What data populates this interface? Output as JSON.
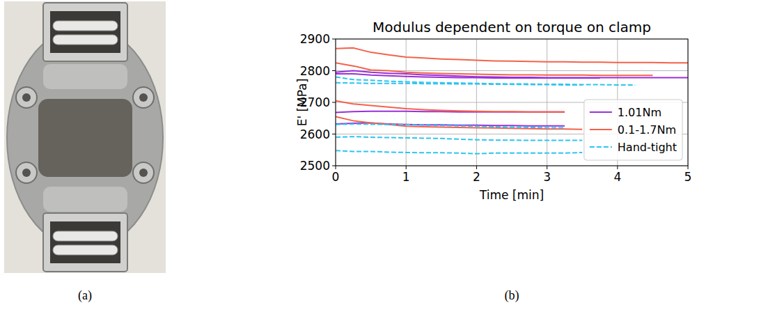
{
  "chart_data": {
    "type": "line",
    "title": "Modulus dependent on torque on clamp",
    "x_label": "Time [min]",
    "y_label": "E' [MPa]",
    "x": [
      0,
      0.25,
      0.5,
      0.75,
      1,
      1.25,
      1.5,
      1.75,
      2,
      2.25,
      2.5,
      2.75,
      3,
      3.25,
      3.5,
      3.75,
      4,
      4.25,
      4.5,
      4.75,
      5
    ],
    "series": [
      {
        "name": "1.01Nm",
        "color": "#9930d8",
        "line_style": "solid",
        "values": [
          2795,
          2800,
          2795,
          2792,
          2790,
          2787,
          2785,
          2783,
          2781,
          2780,
          2779,
          2779,
          2778,
          2778,
          2778,
          2778,
          2778,
          2778,
          2778,
          2778,
          2778
        ]
      },
      {
        "name": "1.01Nm",
        "color": "#9930d8",
        "line_style": "solid",
        "values": [
          2790,
          2790,
          2786,
          2784,
          2782,
          2780,
          2779,
          2778,
          2778,
          2777,
          2777,
          2777,
          2777,
          2777,
          2777,
          2777,
          null,
          null,
          null,
          null,
          null
        ]
      },
      {
        "name": "1.01Nm",
        "color": "#9930d8",
        "line_style": "solid",
        "values": [
          2668,
          2671,
          2672,
          2672,
          2672,
          2671,
          2671,
          2670,
          2670,
          2670,
          2670,
          2670,
          2670,
          2670,
          null,
          null,
          null,
          null,
          null,
          null,
          null
        ]
      },
      {
        "name": "1.01Nm",
        "color": "#9930d8",
        "line_style": "solid",
        "values": [
          2632,
          2634,
          2635,
          2632,
          2630,
          2629,
          2629,
          2628,
          2628,
          2627,
          2627,
          2626,
          2626,
          2626,
          null,
          null,
          null,
          null,
          null,
          null,
          null
        ]
      },
      {
        "name": "0.1-1.7Nm",
        "color": "#f4624a",
        "line_style": "solid",
        "values": [
          2870,
          2872,
          2858,
          2850,
          2843,
          2840,
          2837,
          2835,
          2833,
          2831,
          2830,
          2829,
          2828,
          2828,
          2827,
          2827,
          2826,
          2826,
          2826,
          2825,
          2825
        ]
      },
      {
        "name": "0.1-1.7Nm",
        "color": "#f4624a",
        "line_style": "solid",
        "values": [
          2825,
          2815,
          2802,
          2800,
          2795,
          2793,
          2791,
          2790,
          2789,
          2788,
          2787,
          2787,
          2786,
          2786,
          2786,
          2785,
          2785,
          2785,
          2785,
          null,
          null
        ]
      },
      {
        "name": "0.1-1.7Nm",
        "color": "#f4624a",
        "line_style": "solid",
        "values": [
          2705,
          2695,
          2690,
          2685,
          2680,
          2677,
          2675,
          2673,
          2672,
          2671,
          2671,
          2670,
          2670,
          2670,
          null,
          null,
          null,
          null,
          null,
          null,
          null
        ]
      },
      {
        "name": "0.1-1.7Nm",
        "color": "#f4624a",
        "line_style": "solid",
        "values": [
          2655,
          2642,
          2635,
          2630,
          2625,
          2623,
          2622,
          2621,
          2620,
          2619,
          2618,
          2617,
          2616,
          2616,
          2615,
          null,
          null,
          null,
          null,
          null,
          null
        ]
      },
      {
        "name": "Hand-tight",
        "color": "#2ec4f0",
        "line_style": "dashed",
        "values": [
          2780,
          2772,
          2770,
          2767,
          2765,
          2763,
          2762,
          2761,
          2760,
          2759,
          2758,
          2758,
          2757,
          2757,
          2756,
          2756,
          2755,
          2755,
          null,
          null,
          null
        ]
      },
      {
        "name": "Hand-tight",
        "color": "#2ec4f0",
        "line_style": "dashed",
        "values": [
          2762,
          2761,
          2760,
          2760,
          2760,
          2759,
          2759,
          2758,
          2758,
          2757,
          2757,
          2756,
          2756,
          2755,
          2755,
          null,
          null,
          null,
          null,
          null,
          null
        ]
      },
      {
        "name": "Hand-tight",
        "color": "#2ec4f0",
        "line_style": "dashed",
        "values": [
          2630,
          2632,
          2631,
          2630,
          2630,
          2628,
          2627,
          2626,
          2625,
          2623,
          2622,
          2621,
          2620,
          2620,
          null,
          null,
          null,
          null,
          null,
          null,
          null
        ]
      },
      {
        "name": "Hand-tight",
        "color": "#2ec4f0",
        "line_style": "dashed",
        "values": [
          2590,
          2592,
          2590,
          2589,
          2588,
          2587,
          2586,
          2584,
          2582,
          2581,
          2581,
          2580,
          2580,
          2580,
          2580,
          null,
          null,
          null,
          null,
          null,
          null
        ]
      },
      {
        "name": "Hand-tight",
        "color": "#2ec4f0",
        "line_style": "dashed",
        "values": [
          2548,
          2545,
          2545,
          2543,
          2542,
          2541,
          2541,
          2540,
          2538,
          2540,
          2540,
          2540,
          2540,
          2540,
          2542,
          null,
          null,
          null,
          null,
          null,
          null
        ]
      }
    ],
    "xlim": [
      0,
      5
    ],
    "ylim": [
      2500,
      2900
    ],
    "xticks": [
      0,
      1,
      2,
      3,
      4,
      5
    ],
    "yticks": [
      2500,
      2600,
      2700,
      2800,
      2900
    ],
    "grid": true,
    "legend": "lower right"
  },
  "figure": {
    "panel_labels": [
      "(a)",
      "(b)"
    ]
  }
}
